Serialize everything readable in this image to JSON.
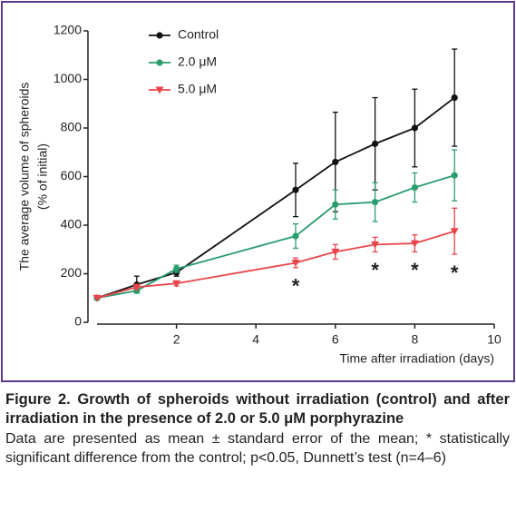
{
  "chart_data": {
    "type": "line",
    "ylabel": [
      "The average volume of spheroids",
      "(% of initial)"
    ],
    "xlabel": "Time after irradiation (days)",
    "xlim": [
      0,
      10
    ],
    "xticks": [
      2,
      4,
      6,
      8,
      10
    ],
    "ylim": [
      0,
      1200
    ],
    "yticks": [
      0,
      200,
      400,
      600,
      800,
      1000,
      1200
    ],
    "legend": "top-left",
    "series": [
      {
        "name": "Control",
        "color": "#111111",
        "marker": "circle",
        "x": [
          0,
          1,
          2,
          5,
          6,
          7,
          8,
          9
        ],
        "values": [
          100,
          155,
          205,
          545,
          660,
          735,
          800,
          925
        ],
        "errors": [
          0,
          35,
          15,
          110,
          205,
          190,
          160,
          200
        ]
      },
      {
        "name": "2.0 μM",
        "color": "#2a9d6e",
        "marker": "circle",
        "x": [
          0,
          1,
          2,
          5,
          6,
          7,
          8,
          9
        ],
        "values": [
          100,
          130,
          220,
          355,
          485,
          495,
          555,
          605
        ],
        "errors": [
          0,
          10,
          15,
          50,
          60,
          80,
          60,
          105
        ]
      },
      {
        "name": "5.0 μM",
        "color": "#e8454a",
        "marker": "triangle-down",
        "x": [
          0,
          1,
          2,
          5,
          6,
          7,
          8,
          9
        ],
        "values": [
          100,
          145,
          160,
          245,
          290,
          320,
          325,
          375
        ],
        "errors": [
          0,
          10,
          10,
          20,
          30,
          30,
          35,
          95
        ]
      }
    ],
    "significance": {
      "x": [
        5,
        7,
        8,
        9
      ],
      "text": [
        "*",
        "*",
        "*",
        "*"
      ],
      "series": 2
    }
  },
  "caption": {
    "title": "Figure 2. Growth of spheroids without irradiation (control) and after irradiation in the presence of 2.0 or 5.0 μM porphyrazine",
    "body": "Data are presented as mean ± standard error of the mean; * statistically significant difference from the control; p<0.05, Dunnett’s test (n=4–6)"
  }
}
